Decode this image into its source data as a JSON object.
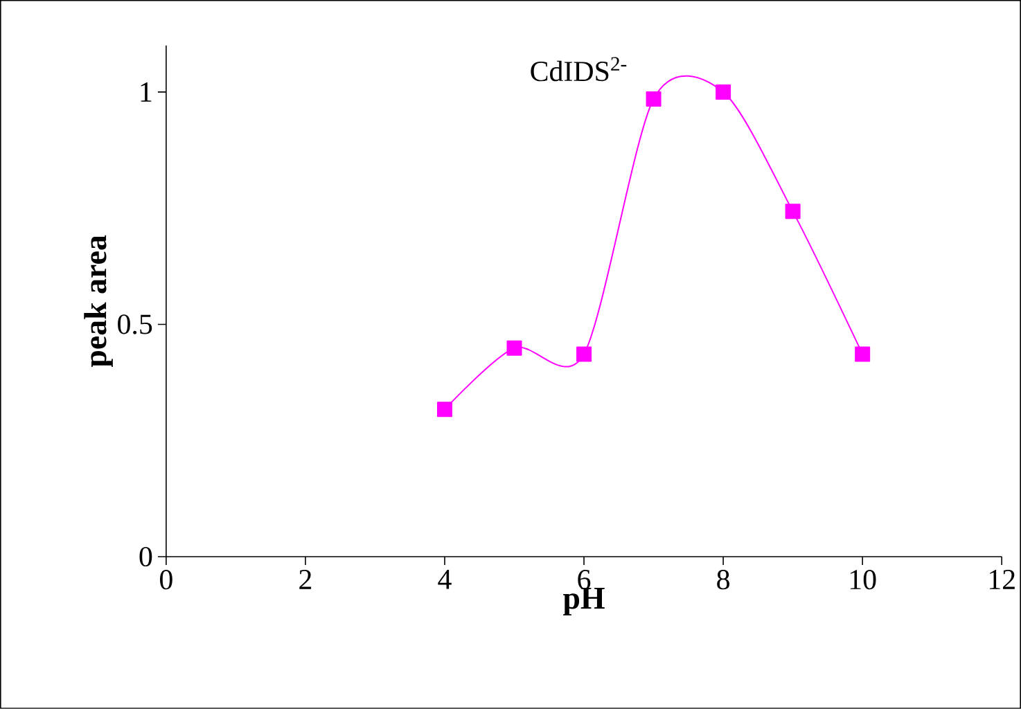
{
  "chart_data": {
    "type": "line",
    "title": "CdIDS$^{2-}$",
    "xlabel": "pH",
    "ylabel": "peak area",
    "x": [
      4,
      5,
      6,
      7,
      8,
      9,
      10
    ],
    "series": [
      {
        "color": "#ff00ff",
        "values": [
          0.317,
          0.449,
          0.436,
          0.985,
          1.0,
          0.743,
          0.436
        ]
      }
    ],
    "xlim": [
      0,
      12
    ],
    "xticks": [
      0,
      2,
      4,
      6,
      8,
      10,
      12
    ],
    "ylim": [
      0,
      1.1
    ],
    "yticks": [
      0,
      0.5,
      1
    ],
    "marker": "square",
    "line_style": "solid",
    "grid": false
  }
}
